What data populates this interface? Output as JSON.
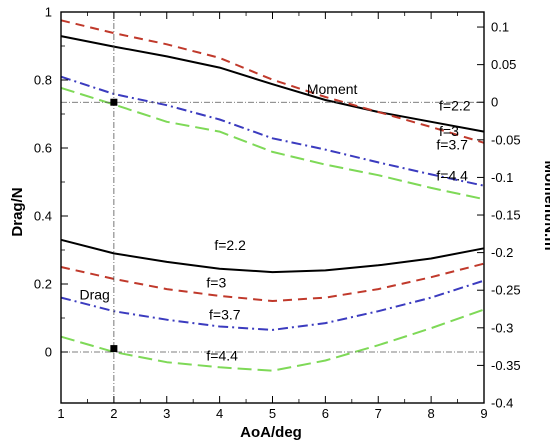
{
  "chart_data": {
    "type": "line",
    "xlabel": "AoA/deg",
    "ylabel_left": "Drag/N",
    "ylabel_right": "Moment/N.m⁻¹",
    "xlim": [
      1,
      9
    ],
    "ylim_left": [
      -0.15,
      1
    ],
    "ylim_right": [
      -0.4,
      0.12
    ],
    "x_ticks": [
      "1",
      "2",
      "3",
      "4",
      "5",
      "6",
      "7",
      "8",
      "9"
    ],
    "y_ticks_left": [
      "0",
      "0.2",
      "0.4",
      "0.6",
      "0.8",
      "1"
    ],
    "y_ticks_right": [
      "-0.4",
      "-0.35",
      "-0.3",
      "-0.25",
      "-0.2",
      "-0.15",
      "-0.1",
      "-0.05",
      "0",
      "0.05",
      "0.1"
    ],
    "grid": false,
    "reference_lines": {
      "vertical_x": 2,
      "horizontal_moment": 0,
      "horizontal_drag": 0
    },
    "markers": [
      {
        "axis": "right",
        "x": 2,
        "y": 0
      },
      {
        "axis": "left",
        "x": 2,
        "y": 0.01
      }
    ],
    "series": [
      {
        "label": "f=2.2",
        "group": "moment",
        "axis": "right",
        "color": "#000000",
        "dash": "solid",
        "x": [
          1,
          2,
          3,
          4,
          5,
          6,
          7,
          8,
          9
        ],
        "y": [
          0.088,
          0.074,
          0.061,
          0.046,
          0.024,
          0.003,
          -0.013,
          -0.026,
          -0.039
        ]
      },
      {
        "label": "f=3",
        "group": "moment",
        "axis": "right",
        "color": "#c0392b",
        "dash": "dash",
        "x": [
          1,
          2,
          3,
          4,
          5,
          6,
          7,
          8,
          9
        ],
        "y": [
          0.109,
          0.092,
          0.077,
          0.059,
          0.03,
          0.007,
          -0.013,
          -0.033,
          -0.054
        ]
      },
      {
        "label": "f=3.7",
        "group": "moment",
        "axis": "right",
        "color": "#3b3bbf",
        "dash": "dashdot",
        "x": [
          1,
          2,
          3,
          4,
          5,
          6,
          7,
          8,
          9
        ],
        "y": [
          0.034,
          0.011,
          -0.004,
          -0.023,
          -0.048,
          -0.063,
          -0.08,
          -0.096,
          -0.111
        ]
      },
      {
        "label": "f=4.4",
        "group": "moment",
        "axis": "right",
        "color": "#7ed957",
        "dash": "longdash",
        "x": [
          1,
          2,
          3,
          4,
          5,
          6,
          7,
          8,
          9
        ],
        "y": [
          0.019,
          -0.003,
          -0.026,
          -0.039,
          -0.066,
          -0.083,
          -0.097,
          -0.114,
          -0.129
        ]
      },
      {
        "label": "f=2.2",
        "group": "drag",
        "axis": "left",
        "color": "#000000",
        "dash": "solid",
        "x": [
          1,
          2,
          3,
          4,
          5,
          6,
          7,
          8,
          9
        ],
        "y": [
          0.33,
          0.29,
          0.265,
          0.245,
          0.235,
          0.24,
          0.255,
          0.275,
          0.305
        ]
      },
      {
        "label": "f=3",
        "group": "drag",
        "axis": "left",
        "color": "#c0392b",
        "dash": "dash",
        "x": [
          1,
          2,
          3,
          4,
          5,
          6,
          7,
          8,
          9
        ],
        "y": [
          0.25,
          0.215,
          0.185,
          0.165,
          0.15,
          0.16,
          0.185,
          0.22,
          0.26
        ]
      },
      {
        "label": "f=3.7",
        "group": "drag",
        "axis": "left",
        "color": "#3b3bbf",
        "dash": "dashdot",
        "x": [
          1,
          2,
          3,
          4,
          5,
          6,
          7,
          8,
          9
        ],
        "y": [
          0.16,
          0.12,
          0.095,
          0.075,
          0.065,
          0.085,
          0.12,
          0.16,
          0.21
        ]
      },
      {
        "label": "f=4.4",
        "group": "drag",
        "axis": "left",
        "color": "#7ed957",
        "dash": "longdash",
        "x": [
          1,
          2,
          3,
          4,
          5,
          6,
          7,
          8,
          9
        ],
        "y": [
          0.045,
          0.0,
          -0.03,
          -0.045,
          -0.055,
          -0.025,
          0.02,
          0.07,
          0.125
        ]
      }
    ],
    "annotations": [
      {
        "text": "Moment",
        "axis": "right",
        "x": 5.65,
        "y": 0.011
      },
      {
        "text": "f=2.2",
        "axis": "right",
        "x": 8.15,
        "y": -0.011
      },
      {
        "text": "f=3",
        "axis": "right",
        "x": 8.15,
        "y": -0.045
      },
      {
        "text": "f=3.7",
        "axis": "right",
        "x": 8.1,
        "y": -0.063
      },
      {
        "text": "f=4.4",
        "axis": "right",
        "x": 8.1,
        "y": -0.104
      },
      {
        "text": "f=2.2",
        "axis": "left",
        "x": 3.9,
        "y": 0.3
      },
      {
        "text": "f=3",
        "axis": "left",
        "x": 3.75,
        "y": 0.19
      },
      {
        "text": "f=3.7",
        "axis": "left",
        "x": 3.8,
        "y": 0.095
      },
      {
        "text": "f=4.4",
        "axis": "left",
        "x": 3.75,
        "y": -0.025
      },
      {
        "text": "Drag",
        "axis": "left",
        "x": 1.35,
        "y": 0.155
      }
    ]
  }
}
